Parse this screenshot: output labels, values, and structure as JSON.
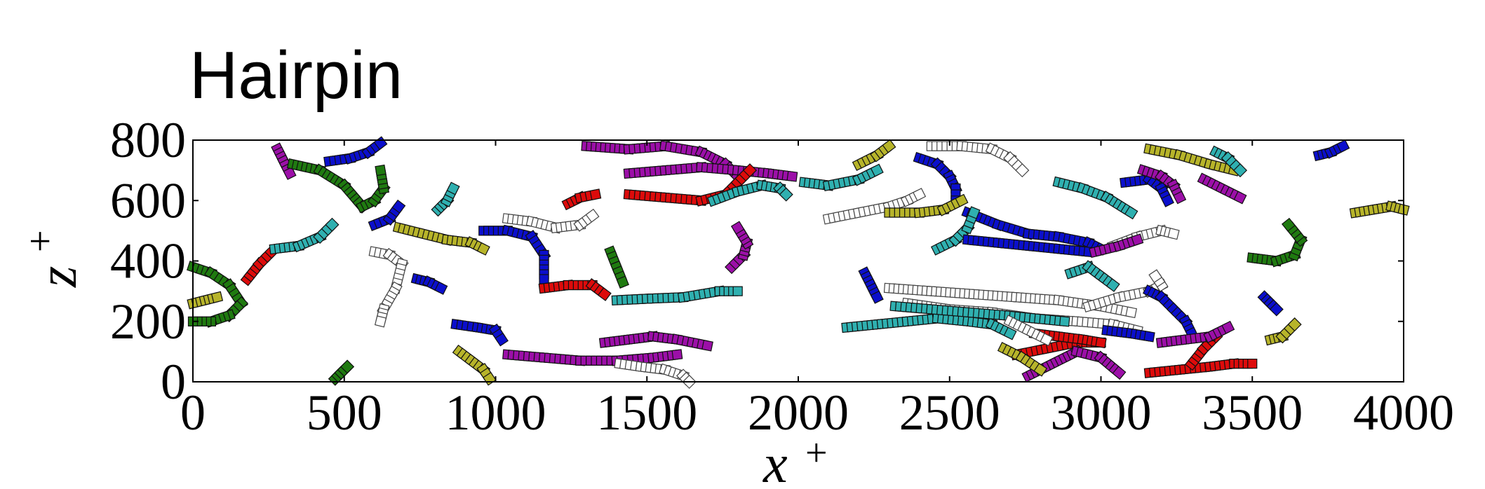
{
  "chart_data": {
    "type": "scatter",
    "title": "Hairpin",
    "xlabel": "x",
    "xlabel_sup": "+",
    "ylabel": "z",
    "ylabel_sup": "+",
    "xlim": [
      0,
      4000
    ],
    "ylim": [
      0,
      800
    ],
    "xticks": [
      "0",
      "500",
      "1000",
      "1500",
      "2000",
      "2500",
      "3000",
      "3500",
      "4000"
    ],
    "yticks": [
      "0",
      "200",
      "400",
      "600",
      "800"
    ],
    "xtick_values": [
      0,
      500,
      1000,
      1500,
      2000,
      2500,
      3000,
      3500,
      4000
    ],
    "ytick_values": [
      0,
      200,
      400,
      600,
      800
    ],
    "grid": false,
    "colors": {
      "green": "#1f7a10",
      "blue": "#0b0fcc",
      "red": "#dd0b0b",
      "cyan": "#2fb0b0",
      "magenta": "#9c0fa8",
      "yellow": "#b7b42a",
      "white": "#ffffff"
    },
    "tracks": [
      {
        "color": "green",
        "x": [
          0,
          60,
          120,
          160,
          120,
          60,
          0
        ],
        "y": [
          380,
          360,
          320,
          260,
          220,
          200,
          200
        ]
      },
      {
        "color": "yellow",
        "x": [
          0,
          40,
          80
        ],
        "y": [
          260,
          270,
          280
        ]
      },
      {
        "color": "red",
        "x": [
          180,
          220,
          260
        ],
        "y": [
          340,
          390,
          430
        ]
      },
      {
        "color": "cyan",
        "x": [
          270,
          350,
          420,
          460
        ],
        "y": [
          440,
          450,
          480,
          520
        ]
      },
      {
        "color": "magenta",
        "x": [
          280,
          300,
          320
        ],
        "y": [
          770,
          730,
          690
        ]
      },
      {
        "color": "green",
        "x": [
          330,
          420,
          500,
          560,
          600,
          630,
          620
        ],
        "y": [
          720,
          700,
          650,
          580,
          600,
          640,
          700
        ]
      },
      {
        "color": "blue",
        "x": [
          450,
          520,
          580,
          620
        ],
        "y": [
          730,
          740,
          760,
          790
        ]
      },
      {
        "color": "blue",
        "x": [
          600,
          650,
          680
        ],
        "y": [
          520,
          540,
          580
        ]
      },
      {
        "color": "white",
        "x": [
          600,
          650,
          690,
          670,
          630,
          620
        ],
        "y": [
          430,
          420,
          390,
          310,
          240,
          200
        ]
      },
      {
        "color": "blue",
        "x": [
          740,
          780,
          820
        ],
        "y": [
          340,
          330,
          310
        ]
      },
      {
        "color": "yellow",
        "x": [
          680,
          760,
          840,
          920,
          960
        ],
        "y": [
          510,
          490,
          470,
          460,
          440
        ]
      },
      {
        "color": "cyan",
        "x": [
          810,
          840,
          860
        ],
        "y": [
          570,
          600,
          640
        ]
      },
      {
        "color": "green",
        "x": [
          470,
          490,
          510
        ],
        "y": [
          10,
          30,
          50
        ]
      },
      {
        "color": "blue",
        "x": [
          870,
          940,
          1000,
          1020
        ],
        "y": [
          190,
          180,
          170,
          140
        ]
      },
      {
        "color": "yellow",
        "x": [
          880,
          920,
          960,
          980
        ],
        "y": [
          100,
          70,
          40,
          10
        ]
      },
      {
        "color": "magenta",
        "x": [
          1040,
          1160,
          1280,
          1400,
          1520,
          1600
        ],
        "y": [
          90,
          80,
          70,
          70,
          80,
          90
        ]
      },
      {
        "color": "blue",
        "x": [
          960,
          1040,
          1120,
          1160,
          1160
        ],
        "y": [
          500,
          500,
          480,
          420,
          340
        ]
      },
      {
        "color": "white",
        "x": [
          1040,
          1120,
          1200,
          1280,
          1320
        ],
        "y": [
          540,
          530,
          510,
          520,
          550
        ]
      },
      {
        "color": "red",
        "x": [
          1160,
          1240,
          1320,
          1360
        ],
        "y": [
          310,
          320,
          320,
          290
        ]
      },
      {
        "color": "red",
        "x": [
          1240,
          1280,
          1330
        ],
        "y": [
          590,
          610,
          620
        ]
      },
      {
        "color": "green",
        "x": [
          1380,
          1400,
          1420
        ],
        "y": [
          430,
          380,
          330
        ]
      },
      {
        "color": "cyan",
        "x": [
          1400,
          1500,
          1620,
          1740,
          1800
        ],
        "y": [
          270,
          275,
          280,
          300,
          300
        ]
      },
      {
        "color": "magenta",
        "x": [
          1360,
          1440,
          1520,
          1600,
          1700
        ],
        "y": [
          130,
          140,
          150,
          140,
          120
        ]
      },
      {
        "color": "white",
        "x": [
          1410,
          1480,
          1560,
          1620,
          1640
        ],
        "y": [
          60,
          50,
          40,
          20,
          0
        ]
      },
      {
        "color": "magenta",
        "x": [
          1300,
          1440,
          1560,
          1680,
          1760,
          1800
        ],
        "y": [
          780,
          770,
          780,
          760,
          720,
          680
        ]
      },
      {
        "color": "magenta",
        "x": [
          1440,
          1560,
          1680,
          1800,
          1900,
          1980
        ],
        "y": [
          690,
          700,
          710,
          700,
          690,
          680
        ]
      },
      {
        "color": "red",
        "x": [
          1440,
          1560,
          1680,
          1760,
          1800,
          1840
        ],
        "y": [
          620,
          610,
          600,
          620,
          660,
          700
        ]
      },
      {
        "color": "cyan",
        "x": [
          1720,
          1800,
          1880,
          1940,
          1960
        ],
        "y": [
          600,
          630,
          650,
          640,
          620
        ]
      },
      {
        "color": "magenta",
        "x": [
          1780,
          1820,
          1830,
          1800
        ],
        "y": [
          380,
          420,
          460,
          510
        ]
      },
      {
        "color": "cyan",
        "x": [
          2020,
          2100,
          2200,
          2260
        ],
        "y": [
          660,
          650,
          670,
          700
        ]
      },
      {
        "color": "yellow",
        "x": [
          2200,
          2260,
          2300
        ],
        "y": [
          720,
          750,
          780
        ]
      },
      {
        "color": "white",
        "x": [
          2100,
          2200,
          2300,
          2360,
          2400
        ],
        "y": [
          540,
          560,
          580,
          600,
          620
        ]
      },
      {
        "color": "blue",
        "x": [
          2400,
          2460,
          2500,
          2520,
          2520
        ],
        "y": [
          740,
          720,
          680,
          640,
          600
        ]
      },
      {
        "color": "yellow",
        "x": [
          2300,
          2400,
          2480,
          2540
        ],
        "y": [
          560,
          560,
          570,
          600
        ]
      },
      {
        "color": "white",
        "x": [
          2440,
          2540,
          2640,
          2700,
          2740
        ],
        "y": [
          780,
          780,
          770,
          740,
          700
        ]
      },
      {
        "color": "blue",
        "x": [
          2560,
          2660,
          2760,
          2860,
          2960,
          3000
        ],
        "y": [
          560,
          520,
          490,
          480,
          460,
          440
        ]
      },
      {
        "color": "cyan",
        "x": [
          2460,
          2520,
          2560,
          2580
        ],
        "y": [
          440,
          470,
          510,
          560
        ]
      },
      {
        "color": "blue",
        "x": [
          2560,
          2660,
          2760,
          2860,
          2960
        ],
        "y": [
          470,
          460,
          450,
          440,
          430
        ]
      },
      {
        "color": "cyan",
        "x": [
          2860,
          2940,
          3020,
          3100
        ],
        "y": [
          660,
          640,
          610,
          560
        ]
      },
      {
        "color": "white",
        "x": [
          3040,
          3120,
          3200,
          3240
        ],
        "y": [
          450,
          480,
          500,
          490
        ]
      },
      {
        "color": "magenta",
        "x": [
          2980,
          3060,
          3120
        ],
        "y": [
          430,
          450,
          470
        ]
      },
      {
        "color": "blue",
        "x": [
          3080,
          3160,
          3200,
          3220
        ],
        "y": [
          660,
          670,
          640,
          600
        ]
      },
      {
        "color": "magenta",
        "x": [
          3140,
          3200,
          3240,
          3260
        ],
        "y": [
          700,
          680,
          650,
          610
        ]
      },
      {
        "color": "yellow",
        "x": [
          3160,
          3260,
          3360,
          3440
        ],
        "y": [
          770,
          750,
          720,
          700
        ]
      },
      {
        "color": "magenta",
        "x": [
          3340,
          3400,
          3460
        ],
        "y": [
          670,
          640,
          610
        ]
      },
      {
        "color": "cyan",
        "x": [
          3380,
          3420,
          3460
        ],
        "y": [
          760,
          740,
          700
        ]
      },
      {
        "color": "blue",
        "x": [
          3720,
          3760,
          3800
        ],
        "y": [
          750,
          760,
          780
        ]
      },
      {
        "color": "yellow",
        "x": [
          3840,
          3900,
          3960,
          4000
        ],
        "y": [
          560,
          570,
          580,
          570
        ]
      },
      {
        "color": "green",
        "x": [
          3500,
          3580,
          3640,
          3660,
          3620
        ],
        "y": [
          410,
          400,
          420,
          470,
          520
        ]
      },
      {
        "color": "blue",
        "x": [
          3540,
          3560,
          3580
        ],
        "y": [
          280,
          260,
          240
        ]
      },
      {
        "color": "yellow",
        "x": [
          3560,
          3600,
          3640
        ],
        "y": [
          140,
          150,
          190
        ]
      },
      {
        "color": "blue",
        "x": [
          2220,
          2240,
          2260
        ],
        "y": [
          360,
          320,
          280
        ]
      },
      {
        "color": "white",
        "x": [
          2300,
          2440,
          2580,
          2720,
          2860,
          3000,
          3100
        ],
        "y": [
          310,
          300,
          290,
          280,
          270,
          250,
          230
        ]
      },
      {
        "color": "white",
        "x": [
          2360,
          2500,
          2640,
          2780,
          2920,
          3040,
          3120
        ],
        "y": [
          260,
          240,
          230,
          210,
          200,
          190,
          170
        ]
      },
      {
        "color": "cyan",
        "x": [
          2160,
          2260,
          2360,
          2460,
          2560,
          2640,
          2700
        ],
        "y": [
          180,
          190,
          200,
          210,
          200,
          190,
          160
        ]
      },
      {
        "color": "cyan",
        "x": [
          2320,
          2440,
          2560,
          2680,
          2780,
          2880
        ],
        "y": [
          250,
          240,
          230,
          220,
          210,
          200
        ]
      },
      {
        "color": "cyan",
        "x": [
          2900,
          2960,
          3000,
          3040
        ],
        "y": [
          360,
          380,
          350,
          320
        ]
      },
      {
        "color": "white",
        "x": [
          2960,
          3060,
          3160,
          3200,
          3180
        ],
        "y": [
          250,
          280,
          300,
          320,
          350
        ]
      },
      {
        "color": "blue",
        "x": [
          3160,
          3200,
          3240,
          3280,
          3300
        ],
        "y": [
          300,
          280,
          240,
          200,
          160
        ]
      },
      {
        "color": "blue",
        "x": [
          3020,
          3100,
          3160
        ],
        "y": [
          170,
          160,
          150
        ]
      },
      {
        "color": "red",
        "x": [
          2720,
          2820,
          2920,
          3000
        ],
        "y": [
          90,
          110,
          130,
          130
        ]
      },
      {
        "color": "red",
        "x": [
          2780,
          2860,
          2940,
          3000
        ],
        "y": [
          160,
          150,
          140,
          130
        ]
      },
      {
        "color": "magenta",
        "x": [
          2760,
          2840,
          2920,
          3000,
          3060
        ],
        "y": [
          20,
          60,
          100,
          80,
          30
        ]
      },
      {
        "color": "red",
        "x": [
          3160,
          3260,
          3360,
          3440,
          3500
        ],
        "y": [
          30,
          40,
          50,
          60,
          60
        ]
      },
      {
        "color": "red",
        "x": [
          3300,
          3340,
          3380
        ],
        "y": [
          60,
          110,
          150
        ]
      },
      {
        "color": "magenta",
        "x": [
          3200,
          3280,
          3360,
          3420
        ],
        "y": [
          130,
          140,
          150,
          180
        ]
      },
      {
        "color": "white",
        "x": [
          2700,
          2760,
          2820
        ],
        "y": [
          200,
          170,
          140
        ]
      },
      {
        "color": "yellow",
        "x": [
          2680,
          2740,
          2800
        ],
        "y": [
          110,
          80,
          40
        ]
      }
    ]
  }
}
